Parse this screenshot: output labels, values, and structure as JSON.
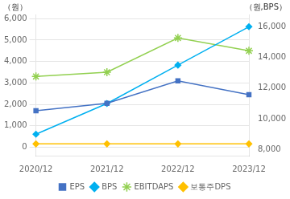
{
  "chart_data": {
    "type": "line",
    "ylabel": "（원）",
    "y2label": "（원,BPS）",
    "categories": [
      "2020/12",
      "2021/12",
      "2022/12",
      "2023/12"
    ],
    "series": [
      {
        "name": "EPS",
        "color": "#4472c4",
        "marker": "square",
        "values": [
          1700,
          2050,
          3100,
          2450
        ]
      },
      {
        "name": "BPS",
        "color": "#00b0f0",
        "marker": "diamond",
        "axis": "y2",
        "values": [
          9000,
          11000,
          13500,
          16000
        ]
      },
      {
        "name": "EBITDAPS",
        "color": "#92d050",
        "marker": "star",
        "values": [
          3300,
          3500,
          5100,
          4500
        ]
      },
      {
        "name": "보통주DPS",
        "color": "#ffc000",
        "marker": "diamond",
        "values": [
          150,
          150,
          150,
          150
        ]
      }
    ],
    "ylim": [
      -400,
      6200
    ],
    "yticks": [
      0,
      {
        "value": 1000,
        "label": "1,000"
      },
      {
        "value": 2000,
        "label": "2,000"
      },
      {
        "value": 3000,
        "label": "3,000"
      },
      {
        "value": 4000,
        "label": "4,000"
      },
      {
        "value": 5000,
        "label": "5,000"
      },
      {
        "value": 6000,
        "label": "6,000"
      }
    ],
    "y2lim": [
      7600,
      16800
    ],
    "y2ticks": [
      {
        "value": 8000,
        "label": "8,000"
      },
      {
        "value": 10000,
        "label": "10,000"
      },
      {
        "value": 12000,
        "label": "12,000"
      },
      {
        "value": 14000,
        "label": "14,000"
      },
      {
        "value": 16000,
        "label": "16,000"
      }
    ],
    "grid": "y",
    "legend": "bottom"
  }
}
